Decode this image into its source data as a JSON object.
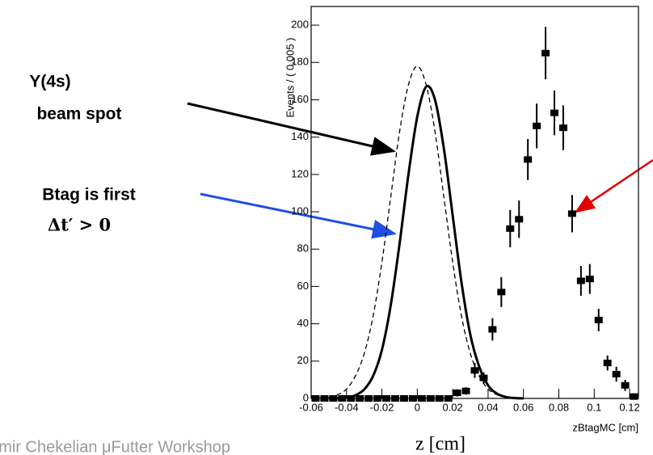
{
  "chart_data": {
    "type": "scatter",
    "ylabel": "Events / ( 0.005 )",
    "xlabel": "zBtagMC [cm]",
    "xlim": [
      -0.06,
      0.125
    ],
    "ylim": [
      0,
      210
    ],
    "xticks": [
      -0.06,
      -0.04,
      -0.02,
      0,
      0.02,
      0.04,
      0.06,
      0.08,
      0.1,
      0.12
    ],
    "yticks": [
      0,
      20,
      40,
      60,
      80,
      100,
      120,
      140,
      160,
      180,
      200
    ],
    "points": {
      "color": "#000000",
      "x": [
        -0.0575,
        -0.0525,
        -0.0475,
        -0.0425,
        -0.0375,
        -0.0325,
        -0.0275,
        -0.0225,
        -0.0175,
        -0.0125,
        -0.0075,
        -0.0025,
        0.0025,
        0.0075,
        0.0125,
        0.0175,
        0.0225,
        0.0275,
        0.0325,
        0.0375,
        0.0425,
        0.0475,
        0.0525,
        0.0575,
        0.0625,
        0.0675,
        0.0725,
        0.0775,
        0.0825,
        0.0875,
        0.0925,
        0.0975,
        0.1025,
        0.1075,
        0.1125,
        0.1175,
        0.1225
      ],
      "values": [
        0,
        0,
        0,
        0,
        0,
        0,
        0,
        0,
        0,
        0,
        0,
        0,
        0,
        0,
        0,
        0,
        3,
        4,
        15,
        11,
        37,
        57,
        91,
        96,
        128,
        146,
        185,
        153,
        145,
        99,
        63,
        64,
        42,
        19,
        13,
        7,
        1
      ],
      "errors": [
        0,
        0,
        0,
        0,
        0,
        0,
        0,
        0,
        0,
        0,
        0,
        0,
        0,
        0,
        0,
        0,
        2,
        2,
        4,
        3,
        6,
        8,
        10,
        10,
        11,
        12,
        14,
        12,
        12,
        10,
        8,
        8,
        6,
        4,
        4,
        3,
        1
      ]
    },
    "curves": [
      {
        "color": "#000000",
        "dash": false,
        "width": 3,
        "x": [
          -0.05,
          -0.045,
          -0.04,
          -0.035,
          -0.03,
          -0.025,
          -0.02,
          -0.015,
          -0.01,
          -0.005,
          0,
          0.005,
          0.01,
          0.015,
          0.02,
          0.025,
          0.03,
          0.035,
          0.04,
          0.045,
          0.05,
          0.055,
          0.06
        ],
        "values": [
          0,
          0.1,
          0.5,
          1.7,
          4.8,
          12,
          26,
          50,
          83,
          120,
          151,
          167,
          160,
          134,
          98,
          62,
          34,
          17,
          7,
          2.6,
          0.8,
          0.2,
          0
        ]
      },
      {
        "color": "#000000",
        "dash": true,
        "width": 1.3,
        "x": [
          -0.05,
          -0.045,
          -0.04,
          -0.035,
          -0.03,
          -0.025,
          -0.02,
          -0.015,
          -0.01,
          -0.005,
          0,
          0.005,
          0.01,
          0.015,
          0.02,
          0.025,
          0.03,
          0.035,
          0.04,
          0.045,
          0.05,
          0.055,
          0.06
        ],
        "values": [
          0.7,
          2,
          5,
          12,
          24,
          44,
          73,
          108,
          143,
          168,
          178,
          168,
          143,
          108,
          73,
          44,
          24,
          12,
          5,
          2,
          0.7,
          0.2,
          0
        ]
      }
    ]
  },
  "annotations": {
    "beam_1": "Y(4s)",
    "beam_2": "beam spot",
    "btag_1": "Btag is first",
    "btag_2": "Δt′ > 0"
  },
  "footer": {
    "author": "Vladimir Chekelian   μFutter Workshop",
    "axis_note": "z [cm]"
  }
}
